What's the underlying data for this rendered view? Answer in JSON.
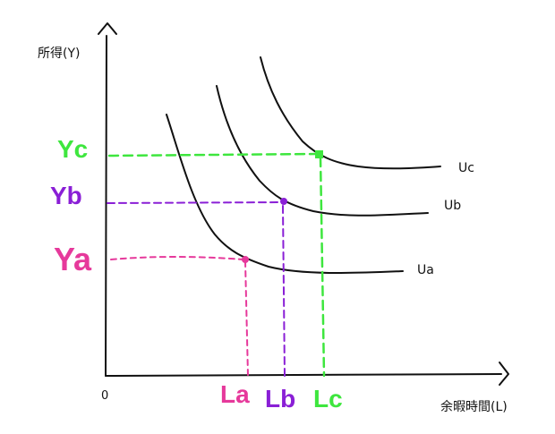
{
  "diagram": {
    "y_axis_label": "所得(Y)",
    "x_axis_label": "余暇時間(L)",
    "origin_label": "0",
    "curves": [
      {
        "name": "Ua",
        "income_label": "Ya",
        "leisure_label": "La",
        "color": "#e6399b"
      },
      {
        "name": "Ub",
        "income_label": "Yb",
        "leisure_label": "Lb",
        "color": "#8a1fd6"
      },
      {
        "name": "Uc",
        "income_label": "Yc",
        "leisure_label": "Lc",
        "color": "#3ee63e"
      }
    ],
    "colors": {
      "axis": "#111111",
      "curve": "#111111",
      "ya": "#e6399b",
      "yb": "#8a1fd6",
      "yc": "#3ee63e"
    }
  }
}
